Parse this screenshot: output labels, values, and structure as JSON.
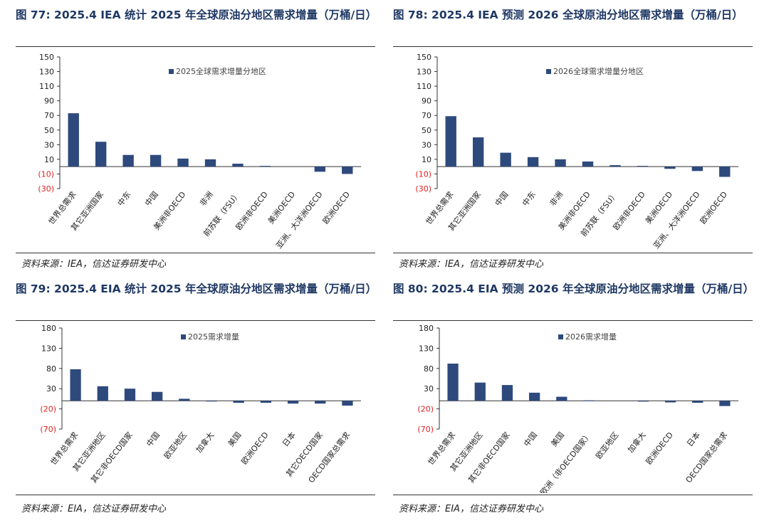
{
  "colors": {
    "bar": "#2e4a7d",
    "title": "#1f3864",
    "negative_tick": "#e02020",
    "axis": "#333333"
  },
  "figures": [
    {
      "title": "图 77:  2025.4 IEA 统计 2025 年全球原油分地区需求增量（万桶/日）",
      "source": "资料来源：IEA，信达证券研发中心",
      "chart_data": {
        "type": "bar",
        "legend": "2025全球需求增量分地区",
        "categories": [
          "世界总需求",
          "其它亚洲国家",
          "中东",
          "中国",
          "美洲非OECD",
          "非洲",
          "前苏联（FSU）",
          "欧洲非OECD",
          "美洲OECD",
          "亚洲、大洋洲OECD",
          "欧洲OECD"
        ],
        "values": [
          73,
          34,
          16,
          16,
          11,
          10,
          4,
          1,
          0,
          -7,
          -10
        ],
        "yticks": [
          150,
          130,
          110,
          90,
          70,
          50,
          30,
          10,
          -10,
          -30
        ],
        "ytick_labels": [
          "150",
          "130",
          "110",
          "90",
          "70",
          "50",
          "30",
          "10",
          "(10)",
          "(30)"
        ],
        "ylim": [
          -30,
          150
        ]
      }
    },
    {
      "title": "图 78:  2025.4 IEA 预测 2026 全球原油分地区需求增量（万桶/日）",
      "source": "资料来源：IEA，信达证券研发中心",
      "chart_data": {
        "type": "bar",
        "legend": "2026全球需求增量分地区",
        "categories": [
          "世界总需求",
          "其它亚洲国家",
          "中国",
          "中东",
          "非洲",
          "美洲非OECD",
          "前苏联（FSU）",
          "欧洲非OECD",
          "美洲OECD",
          "亚洲、大洋洲OECD",
          "欧洲OECD"
        ],
        "values": [
          69,
          40,
          19,
          13,
          10,
          7,
          2,
          1,
          -3,
          -6,
          -14
        ],
        "yticks": [
          150,
          130,
          110,
          90,
          70,
          50,
          30,
          10,
          -10,
          -30
        ],
        "ytick_labels": [
          "150",
          "130",
          "110",
          "90",
          "70",
          "50",
          "30",
          "10",
          "(10)",
          "(30)"
        ],
        "ylim": [
          -30,
          150
        ]
      }
    },
    {
      "title": "图 79:  2025.4 EIA 统计 2025 年全球原油分地区需求增量（万桶/日）",
      "source": "资料来源：EIA，信达证券研发中心",
      "chart_data": {
        "type": "bar",
        "legend": "2025需求增量",
        "categories": [
          "世界总需求",
          "其它亚洲地区",
          "其它非OECD国家",
          "中国",
          "欧亚地区",
          "加拿大",
          "美国",
          "欧洲OECD",
          "日本",
          "其它OECD国家",
          "OECD国家总需求"
        ],
        "values": [
          78,
          36,
          30,
          22,
          5,
          -1,
          -5,
          -5,
          -7,
          -7,
          -12
        ],
        "yticks": [
          180,
          130,
          80,
          30,
          -20,
          -70
        ],
        "ytick_labels": [
          "180",
          "130",
          "80",
          "30",
          "(20)",
          "(70)"
        ],
        "ylim": [
          -70,
          180
        ]
      }
    },
    {
      "title": "图 80:  2025.4 EIA 预测 2026 年全球原油分地区需求增量（万桶/日）",
      "source": "资料来源：EIA，信达证券研发中心",
      "chart_data": {
        "type": "bar",
        "legend": "2026需求增量",
        "categories": [
          "世界总需求",
          "其它亚洲地区",
          "其它非OECD国家",
          "中国",
          "美国",
          "欧洲（非OECD国家）",
          "欧亚地区",
          "加拿大",
          "欧洲OECD",
          "日本",
          "OECD国家总需求"
        ],
        "values": [
          92,
          45,
          39,
          20,
          10,
          1,
          0,
          -2,
          -4,
          -5,
          -13
        ],
        "yticks": [
          180,
          130,
          80,
          30,
          -20,
          -70
        ],
        "ytick_labels": [
          "180",
          "130",
          "80",
          "30",
          "(20)",
          "(70)"
        ],
        "ylim": [
          -70,
          180
        ]
      }
    }
  ]
}
